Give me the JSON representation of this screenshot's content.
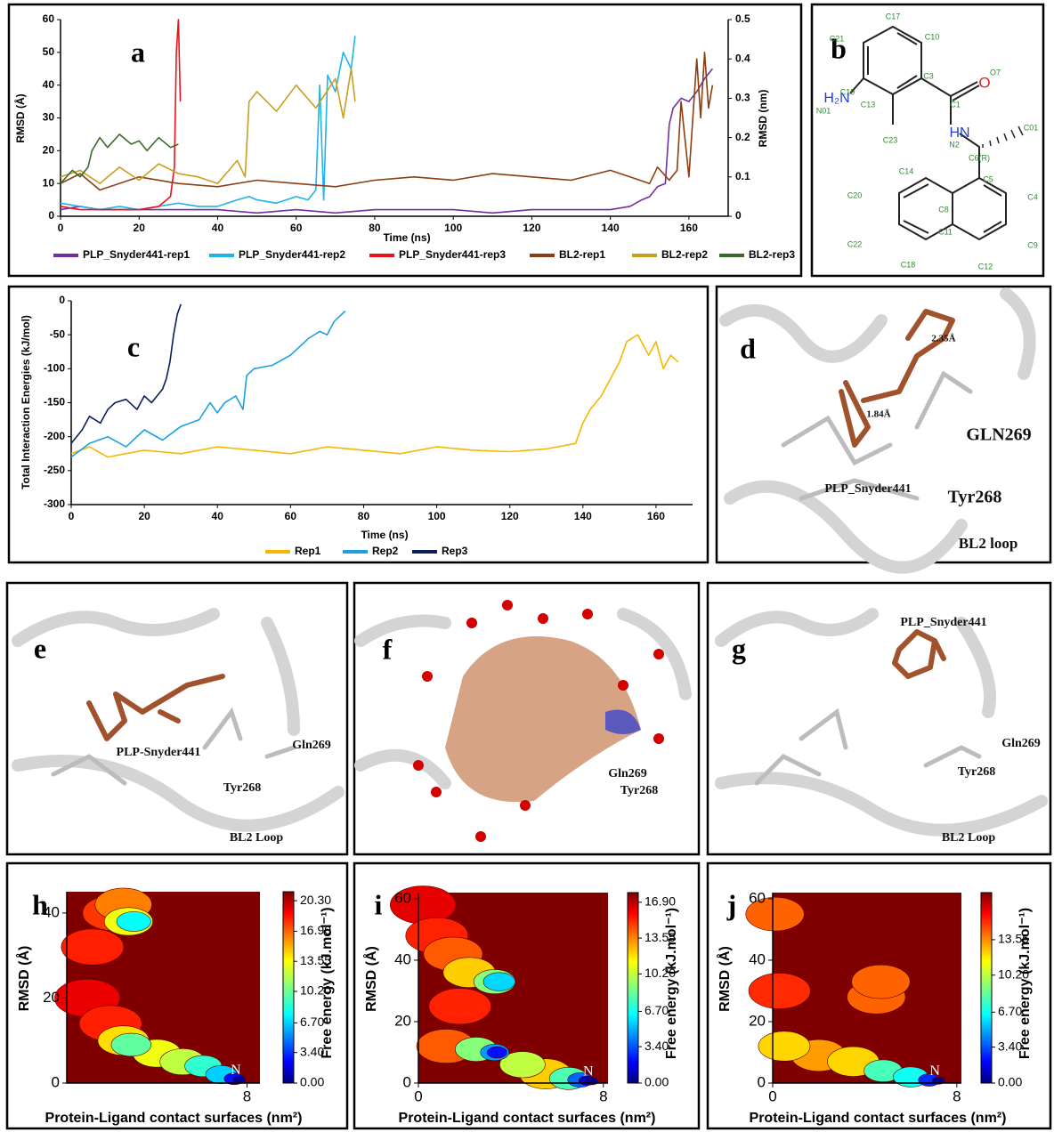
{
  "chart_data": [
    {
      "type": "line",
      "label": "a",
      "xlabel": "Time (ns)",
      "ylabel": "RMSD (Å)",
      "y2label": "RMSD (nm)",
      "xlim": [
        0,
        170
      ],
      "xticks": [
        0,
        20,
        40,
        60,
        80,
        100,
        120,
        140,
        160
      ],
      "ylim": [
        0,
        60
      ],
      "yticks": [
        0,
        10,
        20,
        30,
        40,
        50,
        60
      ],
      "y2lim": [
        0,
        0.5
      ],
      "y2ticks": [
        0,
        0.1,
        0.2,
        0.3,
        0.4,
        0.5
      ],
      "legend": "bottom",
      "series": [
        {
          "name": "PLP_Snyder441-rep1",
          "color": "#7030a0",
          "x": [
            0,
            5,
            10,
            20,
            30,
            40,
            50,
            60,
            70,
            80,
            90,
            100,
            110,
            120,
            130,
            140,
            145,
            148,
            150,
            152,
            154,
            155,
            156,
            158,
            160,
            162,
            164,
            166
          ],
          "values": [
            2,
            3,
            2,
            2,
            2,
            2,
            1,
            2,
            1,
            2,
            2,
            2,
            1,
            2,
            2,
            2,
            3,
            5,
            6,
            9,
            10,
            28,
            33,
            36,
            35,
            38,
            42,
            45
          ]
        },
        {
          "name": "PLP_Snyder441-rep2",
          "color": "#1fb4e8",
          "x": [
            0,
            5,
            10,
            15,
            20,
            25,
            30,
            35,
            40,
            45,
            48,
            50,
            55,
            60,
            63,
            65,
            66,
            67,
            68,
            70,
            72,
            74,
            75
          ],
          "values": [
            4,
            3,
            2,
            3,
            2,
            3,
            4,
            3,
            3,
            5,
            6,
            5,
            4,
            6,
            5,
            8,
            40,
            5,
            43,
            38,
            50,
            45,
            55
          ]
        },
        {
          "name": "PLP_Snyder441-rep3",
          "color": "#e8141c",
          "x": [
            0,
            5,
            10,
            15,
            20,
            25,
            27,
            28,
            29,
            29.5,
            30,
            30.5
          ],
          "values": [
            3,
            2,
            2,
            2,
            2,
            3,
            5,
            6,
            15,
            50,
            60,
            35
          ]
        },
        {
          "name": "BL2-rep1",
          "color": "#8b3e12",
          "x": [
            0,
            5,
            10,
            20,
            30,
            40,
            50,
            60,
            70,
            80,
            90,
            100,
            110,
            120,
            130,
            140,
            145,
            150,
            152,
            155,
            157,
            158,
            160,
            162,
            163,
            164,
            165,
            166
          ],
          "values": [
            10,
            13,
            8,
            12,
            10,
            9,
            11,
            10,
            9,
            11,
            12,
            11,
            13,
            12,
            11,
            14,
            12,
            10,
            15,
            11,
            14,
            35,
            12,
            48,
            30,
            50,
            33,
            40
          ]
        },
        {
          "name": "BL2-rep2",
          "color": "#c8a020",
          "x": [
            0,
            5,
            10,
            15,
            20,
            25,
            30,
            35,
            40,
            45,
            47,
            48,
            50,
            55,
            60,
            65,
            70,
            72,
            74,
            75
          ],
          "values": [
            12,
            14,
            10,
            15,
            11,
            16,
            13,
            12,
            10,
            17,
            12,
            35,
            38,
            32,
            40,
            33,
            42,
            30,
            45,
            35
          ]
        },
        {
          "name": "BL2-rep3",
          "color": "#3a6b2a",
          "x": [
            0,
            3,
            5,
            7,
            8,
            10,
            12,
            15,
            18,
            20,
            22,
            25,
            28,
            30
          ],
          "values": [
            10,
            14,
            12,
            15,
            20,
            24,
            21,
            25,
            22,
            23,
            20,
            24,
            21,
            22
          ]
        }
      ]
    },
    {
      "type": "line",
      "label": "c",
      "xlabel": "Time (ns)",
      "ylabel": "Total Interaction Energies (kJ/mol)",
      "xlim": [
        0,
        170
      ],
      "xticks": [
        0,
        20,
        40,
        60,
        80,
        100,
        120,
        140,
        160
      ],
      "ylim": [
        -300,
        0
      ],
      "yticks": [
        -300,
        -250,
        -200,
        -150,
        -100,
        -50,
        0
      ],
      "legend": "bottom",
      "series": [
        {
          "name": "Rep1",
          "color": "#f5b800",
          "x": [
            0,
            5,
            10,
            20,
            30,
            40,
            50,
            60,
            70,
            80,
            90,
            100,
            110,
            120,
            130,
            138,
            140,
            142,
            145,
            148,
            150,
            152,
            155,
            158,
            160,
            162,
            164,
            166
          ],
          "values": [
            -225,
            -215,
            -230,
            -220,
            -225,
            -215,
            -220,
            -225,
            -215,
            -220,
            -225,
            -215,
            -220,
            -222,
            -218,
            -210,
            -180,
            -160,
            -140,
            -110,
            -90,
            -60,
            -50,
            -80,
            -60,
            -100,
            -80,
            -90
          ]
        },
        {
          "name": "Rep2",
          "color": "#1ba1e2",
          "x": [
            0,
            5,
            10,
            15,
            20,
            25,
            30,
            35,
            38,
            40,
            42,
            45,
            47,
            48,
            50,
            55,
            60,
            62,
            65,
            68,
            70,
            72,
            75
          ],
          "values": [
            -230,
            -210,
            -200,
            -215,
            -190,
            -205,
            -185,
            -175,
            -150,
            -165,
            -150,
            -140,
            -160,
            -110,
            -100,
            -95,
            -80,
            -70,
            -55,
            -45,
            -50,
            -30,
            -15
          ]
        },
        {
          "name": "Rep3",
          "color": "#0c1e5a",
          "x": [
            0,
            3,
            5,
            8,
            10,
            12,
            15,
            18,
            20,
            22,
            25,
            26,
            27,
            28,
            29,
            30
          ],
          "values": [
            -210,
            -190,
            -170,
            -180,
            -160,
            -150,
            -145,
            -160,
            -140,
            -150,
            -130,
            -115,
            -90,
            -50,
            -20,
            -5
          ]
        }
      ]
    },
    {
      "type": "contour",
      "label": "h",
      "xlabel": "Protein-Ligand contact surfaces (nm²)",
      "ylabel": "RMSD (Å)",
      "colorbar_label": "Free energy (kJ.mol⁻¹)",
      "annotation": "N",
      "xlim": [
        1,
        8.5
      ],
      "xticks": [
        8
      ],
      "ylim": [
        0,
        45
      ],
      "yticks": [
        0,
        20,
        40
      ],
      "zlim": [
        0,
        21.3
      ],
      "zticks": [
        {
          "value": 0,
          "label": "0.00"
        },
        {
          "value": 3.4,
          "label": "3.40"
        },
        {
          "value": 6.7,
          "label": "6.70"
        },
        {
          "value": 10.2,
          "label": "10.20"
        },
        {
          "value": 13.55,
          "label": "13.55"
        },
        {
          "value": 16.9,
          "label": "16.90"
        },
        {
          "value": 20.3,
          "label": "20.30"
        }
      ],
      "x": [
        1.8,
        2.0,
        2.7,
        2.8,
        3.2,
        3.2,
        3.4,
        4.5,
        5.5,
        3.5,
        6.3,
        3.6,
        7.0,
        7.5,
        7.7
      ],
      "y": [
        20,
        32,
        14,
        40,
        42,
        10,
        38,
        7,
        5,
        9,
        4,
        38,
        2,
        1,
        0.8
      ],
      "values": [
        19,
        18,
        18,
        17.5,
        16,
        14,
        13,
        13,
        12,
        10,
        9,
        8,
        7,
        3,
        0.5
      ]
    },
    {
      "type": "contour",
      "label": "i",
      "xlabel": "Protein-Ligand contact surfaces (nm²)",
      "ylabel": "RMSD (Å)",
      "colorbar_label": "Free energy (kJ.mol⁻¹)",
      "annotation": "N",
      "xlim": [
        0,
        8.2
      ],
      "xticks": [
        0,
        8
      ],
      "ylim": [
        0,
        62
      ],
      "yticks": [
        0,
        20,
        40,
        60
      ],
      "zlim": [
        0,
        17.8
      ],
      "zticks": [
        {
          "value": 0,
          "label": "0.00"
        },
        {
          "value": 3.4,
          "label": "3.40"
        },
        {
          "value": 6.7,
          "label": "6.70"
        },
        {
          "value": 10.2,
          "label": "10.20"
        },
        {
          "value": 13.55,
          "label": "13.55"
        },
        {
          "value": 16.9,
          "label": "16.90"
        }
      ],
      "x": [
        0.2,
        1.8,
        0.8,
        1.5,
        1.2,
        2.2,
        5.5,
        4.5,
        3.3,
        2.5,
        6.5,
        3.5,
        3.3,
        7,
        3.4,
        7.3,
        7.5
      ],
      "y": [
        58,
        25,
        48,
        42,
        12,
        36,
        3,
        6,
        33,
        11,
        1.5,
        33,
        10,
        1,
        10,
        0.8,
        0.6
      ],
      "values": [
        16,
        15,
        15,
        14,
        14,
        12,
        12,
        10,
        9,
        9,
        8,
        6,
        5,
        4,
        2.5,
        1.5,
        0.3
      ]
    },
    {
      "type": "contour",
      "label": "j",
      "xlabel": "Protein-Ligand contact surfaces (nm²)",
      "ylabel": "RMSD (Å)",
      "colorbar_label": "Free energy (kJ.mol⁻¹)",
      "annotation": "N",
      "xlim": [
        0,
        8.2
      ],
      "xticks": [
        0,
        8
      ],
      "ylim": [
        0,
        62
      ],
      "yticks": [
        0,
        20,
        40,
        60
      ],
      "zlim": [
        0,
        18
      ],
      "zticks": [
        {
          "value": 0,
          "label": "0.00"
        },
        {
          "value": 3.4,
          "label": "3.40"
        },
        {
          "value": 6.7,
          "label": "6.70"
        },
        {
          "value": 10.2,
          "label": "10.20"
        },
        {
          "value": 13.55,
          "label": "13.55"
        }
      ],
      "x": [
        0.3,
        0.1,
        4.5,
        4.7,
        2,
        0.5,
        3.5,
        4.8,
        6,
        6.8,
        7.2
      ],
      "y": [
        30,
        55,
        28,
        33,
        9,
        12,
        7,
        4,
        2,
        1,
        0.8
      ],
      "values": [
        15,
        14,
        14,
        14,
        13,
        12,
        12,
        8,
        7,
        3,
        0.3
      ]
    }
  ],
  "structure": {
    "label": "b",
    "atoms": [
      "C17",
      "C21",
      "C10",
      "C3",
      "O7",
      "O",
      "H₂N",
      "C19",
      "C13",
      "C1",
      "N01",
      "C23",
      "HN",
      "N2",
      "C01",
      "C6(R)",
      "C14",
      "C5",
      "C20",
      "C8",
      "C4",
      "C11",
      "C22",
      "C9",
      "C18",
      "C12"
    ]
  },
  "panels": [
    {
      "label": "d",
      "texts": [
        "2.35Å",
        "1.84Å",
        "GLN269",
        "PLP_Snyder441",
        "Tyr268",
        "BL2 loop"
      ]
    },
    {
      "label": "e",
      "texts": [
        "PLP-Snyder441",
        "Gln269",
        "Tyr268",
        "BL2 Loop"
      ]
    },
    {
      "label": "f",
      "texts": [
        "Gln269",
        "Tyr268"
      ]
    },
    {
      "label": "g",
      "texts": [
        "PLP_Snyder441",
        "Gln269",
        "Tyr268",
        "BL2 Loop"
      ]
    }
  ]
}
